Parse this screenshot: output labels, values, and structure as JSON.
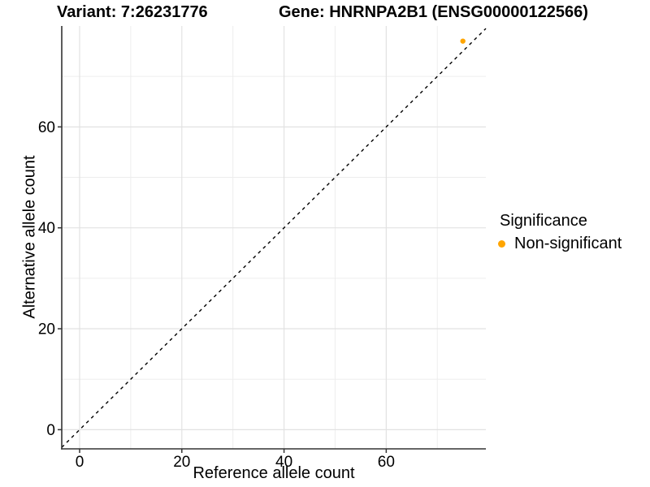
{
  "header": {
    "variant_title": "Variant: 7:26231776",
    "gene_title": "Gene: HNRNPA2B1 (ENSG00000122566)"
  },
  "axes": {
    "x_title": "Reference allele count",
    "y_title": "Alternative allele count"
  },
  "legend": {
    "title": "Significance",
    "position": "right",
    "items": [
      {
        "label": "Non-significant",
        "color": "#FFA500"
      }
    ]
  },
  "chart_data": {
    "type": "scatter",
    "titles": [
      "Variant: 7:26231776",
      "Gene: HNRNPA2B1 (ENSG00000122566)"
    ],
    "xlabel": "Reference allele count",
    "ylabel": "Alternative allele count",
    "xlim": [
      -3.5,
      79.5
    ],
    "ylim": [
      -3.8,
      80.0
    ],
    "x_ticks": [
      0,
      20,
      40,
      60
    ],
    "y_ticks": [
      0,
      20,
      40,
      60
    ],
    "x_minor_ticks": [
      10,
      30,
      50,
      70
    ],
    "y_minor_ticks": [
      10,
      30,
      50,
      70
    ],
    "grid": true,
    "legend_position": "right",
    "reference_line": {
      "type": "identity",
      "equation": "y = x",
      "style": "dashed",
      "color": "#000000"
    },
    "series": [
      {
        "name": "Non-significant",
        "color": "#FFA500",
        "marker": "circle",
        "points": [
          {
            "x": 75,
            "y": 77
          }
        ]
      }
    ]
  },
  "style": {
    "background": "#FFFFFF",
    "axis_line_color": "#333333",
    "tick_color": "#333333",
    "text_color": "#000000",
    "grid_major_color": "#E2E2E2",
    "grid_minor_color": "#EDEDED",
    "point_color": "#FFA500"
  }
}
